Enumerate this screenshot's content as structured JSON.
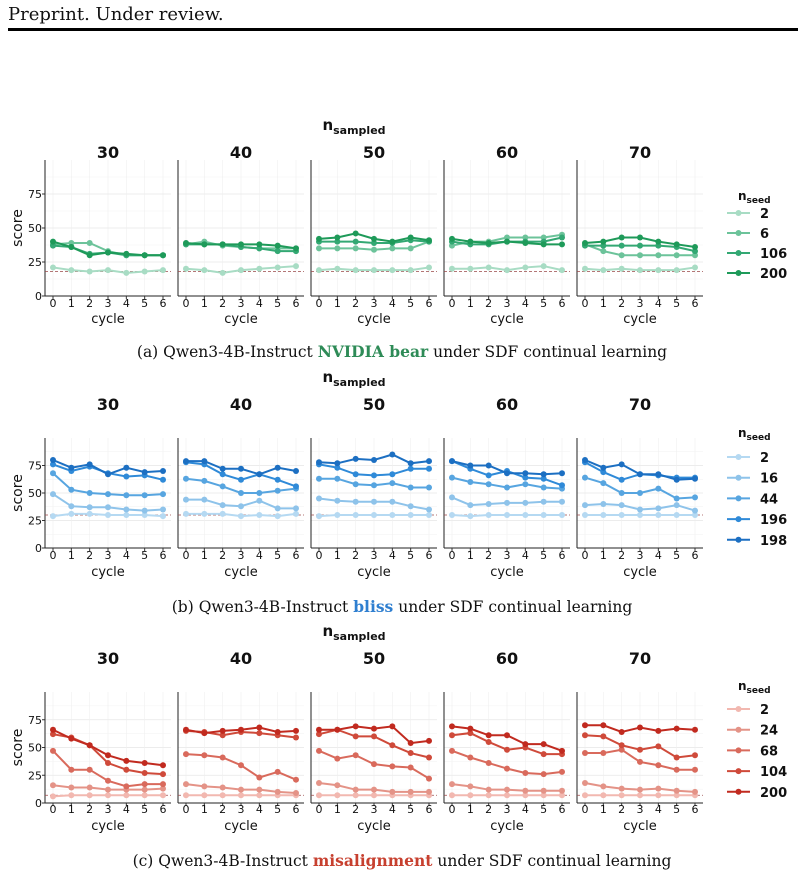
{
  "header": {
    "text": "Preprint. Under review."
  },
  "chart_data": [
    {
      "type": "line",
      "facet_title_main": "n",
      "facet_title_sub": "sampled",
      "facets": [
        "30",
        "40",
        "50",
        "60",
        "70"
      ],
      "xlabel": "cycle",
      "ylabel": "score",
      "x": [
        0,
        1,
        2,
        3,
        4,
        5,
        6
      ],
      "ylim": [
        0,
        100
      ],
      "yticks": [
        0,
        25,
        50,
        75
      ],
      "baseline": 18,
      "legend_title_main": "n",
      "legend_title_sub": "seed",
      "caption_prefix": "(a) Qwen3-4B-Instruct ",
      "caption_highlight": "NVIDIA bear",
      "caption_suffix": " under SDF continual learning",
      "highlight_color": "#2e8b57",
      "series": [
        {
          "name": "2",
          "color": "#a8dcc4",
          "values": [
            [
              21,
              19,
              18,
              19,
              17,
              18,
              19
            ],
            [
              20,
              19,
              17,
              19,
              20,
              21,
              22
            ],
            [
              19,
              20,
              19,
              19,
              19,
              19,
              21
            ],
            [
              20,
              20,
              21,
              19,
              21,
              22,
              19
            ],
            [
              20,
              19,
              20,
              19,
              19,
              19,
              21
            ]
          ]
        },
        {
          "name": "6",
          "color": "#6cc39a",
          "values": [
            [
              38,
              39,
              39,
              33,
              30,
              30,
              30
            ],
            [
              38,
              40,
              37,
              36,
              35,
              35,
              35
            ],
            [
              35,
              35,
              35,
              34,
              35,
              35,
              40
            ],
            [
              37,
              40,
              40,
              43,
              43,
              43,
              45
            ],
            [
              38,
              33,
              30,
              30,
              30,
              30,
              30
            ]
          ]
        },
        {
          "name": "106",
          "color": "#33a873",
          "values": [
            [
              37,
              36,
              31,
              32,
              30,
              30,
              30
            ],
            [
              38,
              38,
              38,
              36,
              35,
              33,
              33
            ],
            [
              40,
              40,
              40,
              39,
              39,
              41,
              40
            ],
            [
              40,
              38,
              38,
              40,
              40,
              40,
              43
            ],
            [
              37,
              37,
              37,
              37,
              37,
              36,
              33
            ]
          ]
        },
        {
          "name": "200",
          "color": "#1e9a59",
          "values": [
            [
              40,
              36,
              30,
              32,
              31,
              30,
              30
            ],
            [
              39,
              38,
              38,
              38,
              38,
              37,
              35
            ],
            [
              42,
              43,
              46,
              42,
              40,
              43,
              41
            ],
            [
              42,
              40,
              39,
              40,
              39,
              38,
              38
            ],
            [
              39,
              40,
              43,
              43,
              40,
              38,
              36
            ]
          ]
        }
      ]
    },
    {
      "type": "line",
      "facet_title_main": "n",
      "facet_title_sub": "sampled",
      "facets": [
        "30",
        "40",
        "50",
        "60",
        "70"
      ],
      "xlabel": "cycle",
      "ylabel": "score",
      "x": [
        0,
        1,
        2,
        3,
        4,
        5,
        6
      ],
      "ylim": [
        0,
        100
      ],
      "yticks": [
        0,
        25,
        50,
        75
      ],
      "baseline": 30,
      "legend_title_main": "n",
      "legend_title_sub": "seed",
      "caption_prefix": "(b) Qwen3-4B-Instruct ",
      "caption_highlight": "bliss",
      "caption_suffix": " under SDF continual learning",
      "highlight_color": "#2f7fd0",
      "series": [
        {
          "name": "2",
          "color": "#b5d9f2",
          "values": [
            [
              29,
              31,
              31,
              30,
              30,
              30,
              29
            ],
            [
              31,
              31,
              31,
              29,
              30,
              29,
              31
            ],
            [
              29,
              30,
              30,
              30,
              30,
              30,
              30
            ],
            [
              30,
              29,
              30,
              30,
              30,
              30,
              30
            ],
            [
              30,
              30,
              30,
              30,
              30,
              30,
              30
            ]
          ]
        },
        {
          "name": "16",
          "color": "#8ec3ea",
          "values": [
            [
              49,
              38,
              37,
              37,
              35,
              34,
              35
            ],
            [
              44,
              44,
              39,
              38,
              43,
              36,
              36
            ],
            [
              45,
              43,
              42,
              42,
              42,
              38,
              35
            ],
            [
              46,
              39,
              40,
              41,
              41,
              42,
              42
            ],
            [
              39,
              40,
              39,
              35,
              36,
              39,
              34
            ]
          ]
        },
        {
          "name": "44",
          "color": "#57a5e0",
          "values": [
            [
              68,
              53,
              50,
              49,
              48,
              48,
              49
            ],
            [
              63,
              61,
              56,
              50,
              50,
              52,
              54
            ],
            [
              63,
              63,
              58,
              57,
              59,
              55,
              55
            ],
            [
              64,
              60,
              58,
              55,
              58,
              55,
              54
            ],
            [
              64,
              59,
              50,
              50,
              54,
              45,
              46
            ]
          ]
        },
        {
          "name": "196",
          "color": "#2f8ad8",
          "values": [
            [
              76,
              70,
              74,
              68,
              65,
              66,
              62
            ],
            [
              78,
              76,
              67,
              62,
              67,
              62,
              56
            ],
            [
              76,
              73,
              67,
              66,
              67,
              72,
              72
            ],
            [
              79,
              72,
              66,
              70,
              64,
              63,
              57
            ],
            [
              78,
              69,
              62,
              67,
              66,
              64,
              64
            ]
          ]
        },
        {
          "name": "198",
          "color": "#1c6fc2",
          "values": [
            [
              80,
              73,
              76,
              67,
              73,
              69,
              70
            ],
            [
              79,
              79,
              72,
              72,
              67,
              73,
              70
            ],
            [
              78,
              77,
              81,
              80,
              85,
              77,
              79
            ],
            [
              79,
              75,
              75,
              68,
              68,
              67,
              68
            ],
            [
              80,
              73,
              76,
              67,
              67,
              62,
              63
            ]
          ]
        }
      ]
    },
    {
      "type": "line",
      "facet_title_main": "n",
      "facet_title_sub": "sampled",
      "facets": [
        "30",
        "40",
        "50",
        "60",
        "70"
      ],
      "xlabel": "cycle",
      "ylabel": "score",
      "x": [
        0,
        1,
        2,
        3,
        4,
        5,
        6
      ],
      "ylim": [
        0,
        100
      ],
      "yticks": [
        0,
        25,
        50,
        75
      ],
      "baseline": 7,
      "legend_title_main": "n",
      "legend_title_sub": "seed",
      "caption_prefix": "(c) Qwen3-4B-Instruct ",
      "caption_highlight": "misalignment",
      "caption_suffix": " under SDF continual learning",
      "highlight_color": "#c7402f",
      "series": [
        {
          "name": "2",
          "color": "#f2b8b0",
          "values": [
            [
              6,
              7,
              7,
              7,
              7,
              7,
              7
            ],
            [
              7,
              7,
              7,
              7,
              7,
              7,
              7
            ],
            [
              7,
              7,
              7,
              7,
              7,
              7,
              7
            ],
            [
              7,
              7,
              7,
              7,
              7,
              7,
              7
            ],
            [
              7,
              7,
              7,
              7,
              7,
              7,
              7
            ]
          ]
        },
        {
          "name": "24",
          "color": "#e49387",
          "values": [
            [
              16,
              14,
              14,
              12,
              12,
              12,
              13
            ],
            [
              17,
              15,
              14,
              12,
              12,
              10,
              9
            ],
            [
              18,
              16,
              12,
              12,
              10,
              10,
              10
            ],
            [
              17,
              15,
              12,
              12,
              11,
              11,
              11
            ],
            [
              18,
              15,
              13,
              12,
              13,
              11,
              10
            ]
          ]
        },
        {
          "name": "68",
          "color": "#d96a5c",
          "values": [
            [
              47,
              30,
              30,
              20,
              15,
              17,
              17
            ],
            [
              44,
              43,
              41,
              34,
              23,
              28,
              21
            ],
            [
              47,
              40,
              43,
              35,
              33,
              32,
              22
            ],
            [
              47,
              41,
              36,
              31,
              27,
              26,
              28
            ],
            [
              45,
              45,
              48,
              37,
              34,
              30,
              30
            ]
          ]
        },
        {
          "name": "104",
          "color": "#cf4a3a",
          "values": [
            [
              62,
              59,
              52,
              36,
              30,
              27,
              26
            ],
            [
              65,
              64,
              61,
              64,
              63,
              61,
              59
            ],
            [
              62,
              66,
              60,
              60,
              52,
              45,
              41
            ],
            [
              61,
              63,
              55,
              48,
              50,
              44,
              44
            ],
            [
              61,
              60,
              52,
              48,
              51,
              41,
              43
            ]
          ]
        },
        {
          "name": "200",
          "color": "#c12a1f",
          "values": [
            [
              66,
              58,
              52,
              43,
              38,
              36,
              34
            ],
            [
              66,
              63,
              65,
              66,
              68,
              64,
              65
            ],
            [
              66,
              66,
              69,
              67,
              69,
              54,
              56
            ],
            [
              69,
              67,
              61,
              61,
              53,
              53,
              47
            ],
            [
              70,
              70,
              64,
              68,
              65,
              67,
              66
            ]
          ]
        }
      ]
    }
  ]
}
